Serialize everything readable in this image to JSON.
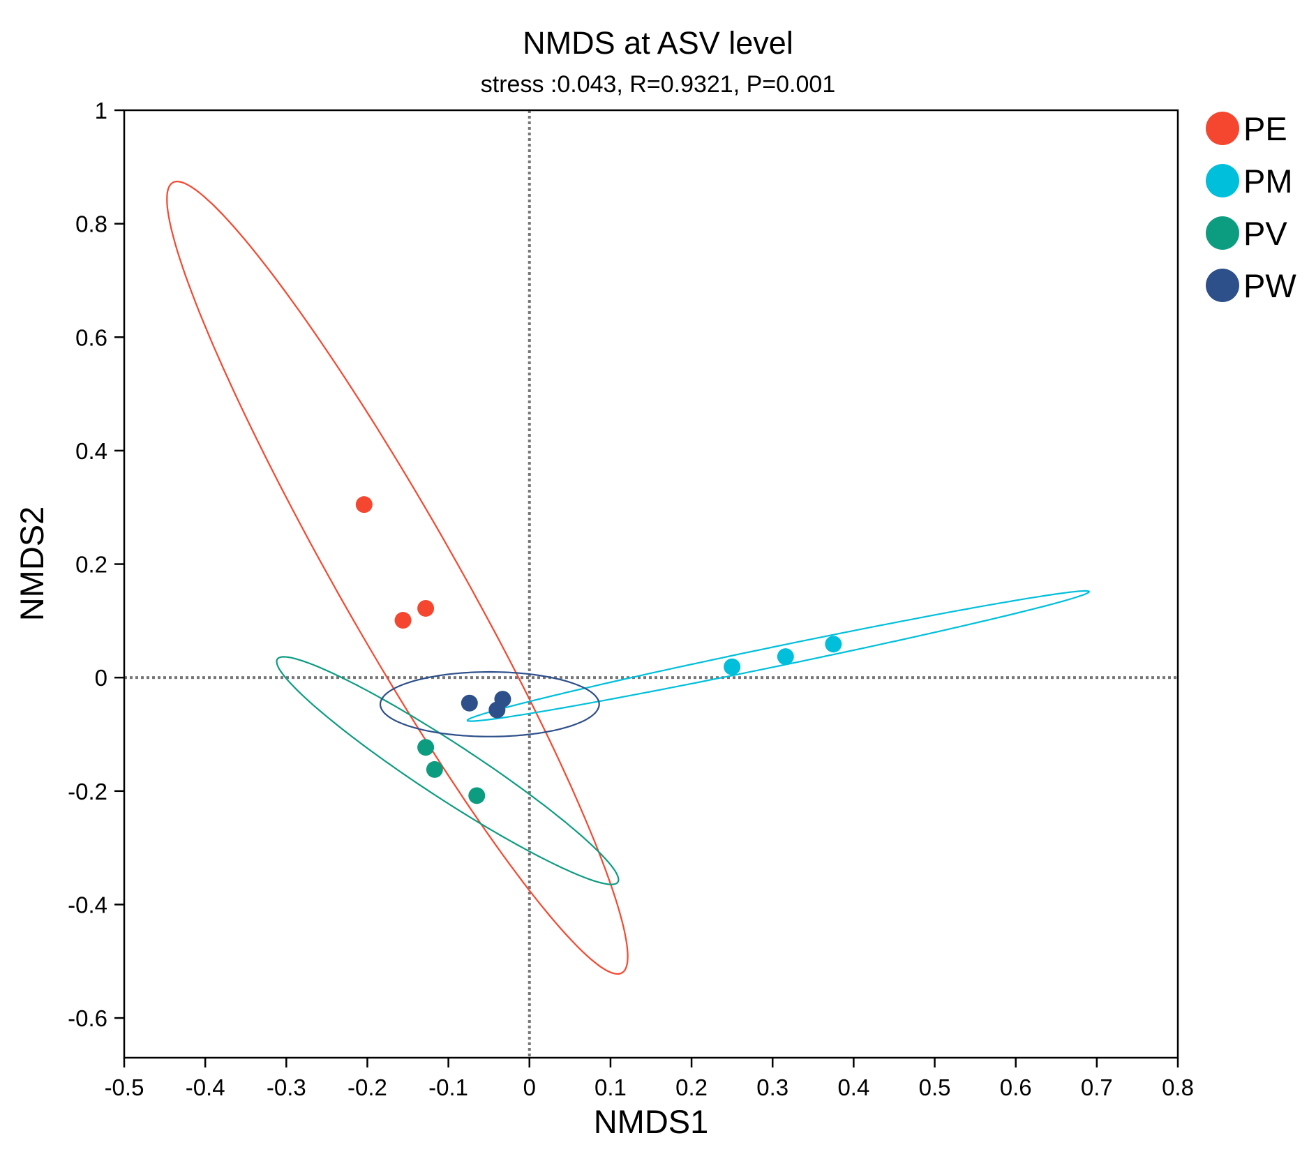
{
  "chart_data": {
    "type": "scatter",
    "title": "NMDS at ASV level",
    "subtitle": "stress :0.043, R=0.9321, P=0.001",
    "xlabel": "NMDS1",
    "ylabel": "NMDS2",
    "xlim": [
      -0.5,
      0.8
    ],
    "ylim": [
      -0.67,
      1.0
    ],
    "xticks": [
      -0.5,
      -0.4,
      -0.3,
      -0.2,
      -0.1,
      0,
      0.1,
      0.2,
      0.3,
      0.4,
      0.5,
      0.6,
      0.7,
      0.8
    ],
    "xtick_labels": [
      "-0.5",
      "-0.4",
      "-0.3",
      "-0.2",
      "-0.1",
      "0",
      "0.1",
      "0.2",
      "0.3",
      "0.4",
      "0.5",
      "0.6",
      "0.7",
      "0.8"
    ],
    "yticks": [
      -0.6,
      -0.4,
      -0.2,
      0,
      0.2,
      0.4,
      0.6,
      0.8,
      1
    ],
    "ytick_labels": [
      "-0.6",
      "-0.4",
      "-0.2",
      "0",
      "0.2",
      "0.4",
      "0.6",
      "0.8",
      "1"
    ],
    "reference_lines": {
      "x": 0,
      "y": 0,
      "style": "dotted"
    },
    "legend_position": "right",
    "series": [
      {
        "name": "PE",
        "color": "#F5472F",
        "points": [
          [
            -0.204,
            0.305
          ],
          [
            -0.156,
            0.101
          ],
          [
            -0.128,
            0.122
          ]
        ],
        "ellipse": {
          "center": [
            -0.163,
            0.176
          ],
          "axes": [
            0.75,
            0.078
          ],
          "angle_deg": -68.5
        }
      },
      {
        "name": "PM",
        "color": "#00BFDB",
        "points": [
          [
            0.25,
            0.019
          ],
          [
            0.316,
            0.037
          ],
          [
            0.375,
            0.059
          ]
        ],
        "ellipse": {
          "center": [
            0.307,
            0.038
          ],
          "axes": [
            0.4,
            0.017
          ],
          "angle_deg": 16.5
        }
      },
      {
        "name": "PV",
        "color": "#0C9C80",
        "points": [
          [
            -0.128,
            -0.123
          ],
          [
            -0.117,
            -0.162
          ],
          [
            -0.065,
            -0.208
          ]
        ],
        "ellipse": {
          "center": [
            -0.101,
            -0.164
          ],
          "axes": [
            0.288,
            0.042
          ],
          "angle_deg": -43.5
        }
      },
      {
        "name": "PW",
        "color": "#2D4F8A",
        "points": [
          [
            -0.074,
            -0.045
          ],
          [
            -0.04,
            -0.057
          ],
          [
            -0.033,
            -0.038
          ]
        ],
        "ellipse": {
          "center": [
            -0.049,
            -0.047
          ],
          "axes": [
            0.135,
            0.057
          ],
          "angle_deg": 0
        }
      }
    ]
  }
}
